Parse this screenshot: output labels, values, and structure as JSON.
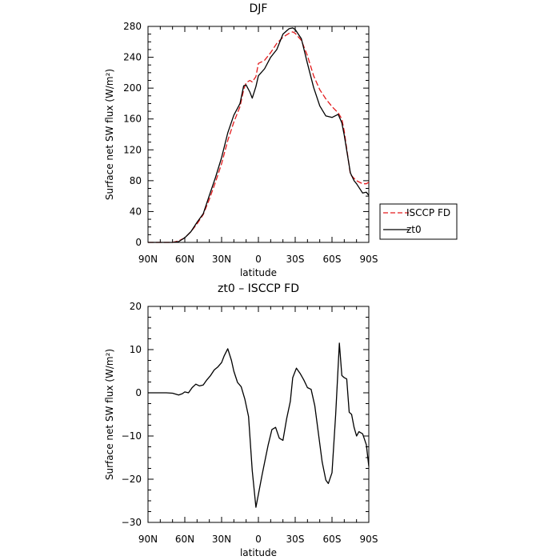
{
  "chart_data": [
    {
      "type": "line",
      "title": "DJF",
      "xlabel": "latitude",
      "ylabel": "Surface net SW flux (W/m²)",
      "xlim": [
        90,
        -90
      ],
      "ylim": [
        0,
        280
      ],
      "xticks": [
        90,
        60,
        30,
        0,
        -30,
        -60,
        -90
      ],
      "xticklabels": [
        "90N",
        "60N",
        "30N",
        "0",
        "30S",
        "60S",
        "90S"
      ],
      "yticks": [
        0,
        40,
        80,
        120,
        160,
        200,
        240,
        280
      ],
      "yticklabels": [
        "0",
        "40",
        "80",
        "120",
        "160",
        "200",
        "240",
        "280"
      ],
      "grid": false,
      "legend_placement": "outside-right",
      "series": [
        {
          "name": "ISCCP FD",
          "color": "#e31a1c",
          "dash": "dashed",
          "x": [
            90,
            80,
            75,
            70,
            65,
            60,
            55,
            50,
            45,
            40,
            35,
            30,
            25,
            20,
            15,
            12,
            10,
            7,
            5,
            2,
            0,
            -5,
            -10,
            -15,
            -20,
            -25,
            -28,
            -30,
            -35,
            -40,
            -45,
            -50,
            -55,
            -60,
            -65,
            -68,
            -70,
            -75,
            -78,
            -80,
            -85,
            -88,
            -90
          ],
          "y": [
            0,
            0,
            0,
            0,
            2,
            6,
            14,
            24,
            36,
            56,
            78,
            102,
            132,
            156,
            176,
            198,
            207,
            210,
            208,
            215,
            232,
            236,
            246,
            258,
            266,
            271,
            273,
            271,
            262,
            242,
            216,
            198,
            186,
            176,
            168,
            160,
            144,
            88,
            83,
            80,
            76,
            76,
            78
          ]
        },
        {
          "name": "zt0",
          "color": "#000000",
          "dash": "solid",
          "x": [
            90,
            80,
            75,
            70,
            65,
            60,
            55,
            50,
            45,
            40,
            35,
            30,
            25,
            20,
            15,
            12,
            10,
            7,
            5,
            2,
            0,
            -5,
            -10,
            -15,
            -20,
            -25,
            -28,
            -30,
            -35,
            -40,
            -45,
            -50,
            -55,
            -60,
            -65,
            -68,
            -70,
            -75,
            -78,
            -80,
            -85,
            -88,
            -90
          ],
          "y": [
            0,
            0,
            0,
            0,
            1,
            6,
            14,
            26,
            37,
            61,
            84,
            110,
            142,
            165,
            180,
            203,
            204,
            195,
            187,
            202,
            216,
            225,
            240,
            250,
            270,
            277,
            278,
            276,
            264,
            232,
            201,
            177,
            164,
            162,
            166,
            155,
            139,
            90,
            80,
            76,
            64,
            65,
            61
          ]
        }
      ]
    },
    {
      "type": "line",
      "title": "zt0 – ISCCP FD",
      "xlabel": "latitude",
      "ylabel": "Surface net SW flux (W/m²)",
      "xlim": [
        90,
        -90
      ],
      "ylim": [
        -30,
        20
      ],
      "xticks": [
        90,
        60,
        30,
        0,
        -30,
        -60,
        -90
      ],
      "xticklabels": [
        "90N",
        "60N",
        "30N",
        "0",
        "30S",
        "60S",
        "90S"
      ],
      "yticks": [
        -30,
        -20,
        -10,
        0,
        10,
        20
      ],
      "yticklabels": [
        "−30",
        "−20",
        "−10",
        "0",
        "10",
        "20"
      ],
      "grid": false,
      "series": [
        {
          "color": "#000000",
          "dash": "solid",
          "x": [
            90,
            80,
            75,
            70,
            65,
            62,
            60,
            57,
            54,
            51,
            48,
            45,
            42,
            39,
            36,
            33,
            30,
            28,
            25,
            22,
            20,
            17,
            14,
            11,
            8,
            5,
            2,
            0,
            -3,
            -6,
            -8,
            -11,
            -14,
            -17,
            -20,
            -23,
            -26,
            -28,
            -31,
            -34,
            -37,
            -40,
            -43,
            -46,
            -49,
            -52,
            -55,
            -57,
            -60,
            -63,
            -66,
            -68,
            -70,
            -72,
            -74,
            -76,
            -78,
            -80,
            -82,
            -85,
            -88,
            -90
          ],
          "y": [
            0,
            0,
            0,
            -0.1,
            -0.5,
            -0.2,
            0.2,
            0,
            1.2,
            2,
            1.6,
            1.8,
            3,
            4,
            5.3,
            6,
            7,
            8.5,
            10.2,
            7.5,
            5,
            2.4,
            1.4,
            -1.5,
            -5.5,
            -18,
            -26.5,
            -23.5,
            -19,
            -14.8,
            -12,
            -8.5,
            -8,
            -10.5,
            -11,
            -6,
            -2,
            3.5,
            5.7,
            4.5,
            3,
            1.2,
            0.8,
            -3,
            -9.5,
            -16,
            -20.2,
            -21,
            -18.5,
            -5,
            11.5,
            4,
            3.5,
            3.2,
            -4.5,
            -5,
            -8,
            -10,
            -9,
            -9.5,
            -12,
            -17
          ]
        }
      ]
    }
  ]
}
